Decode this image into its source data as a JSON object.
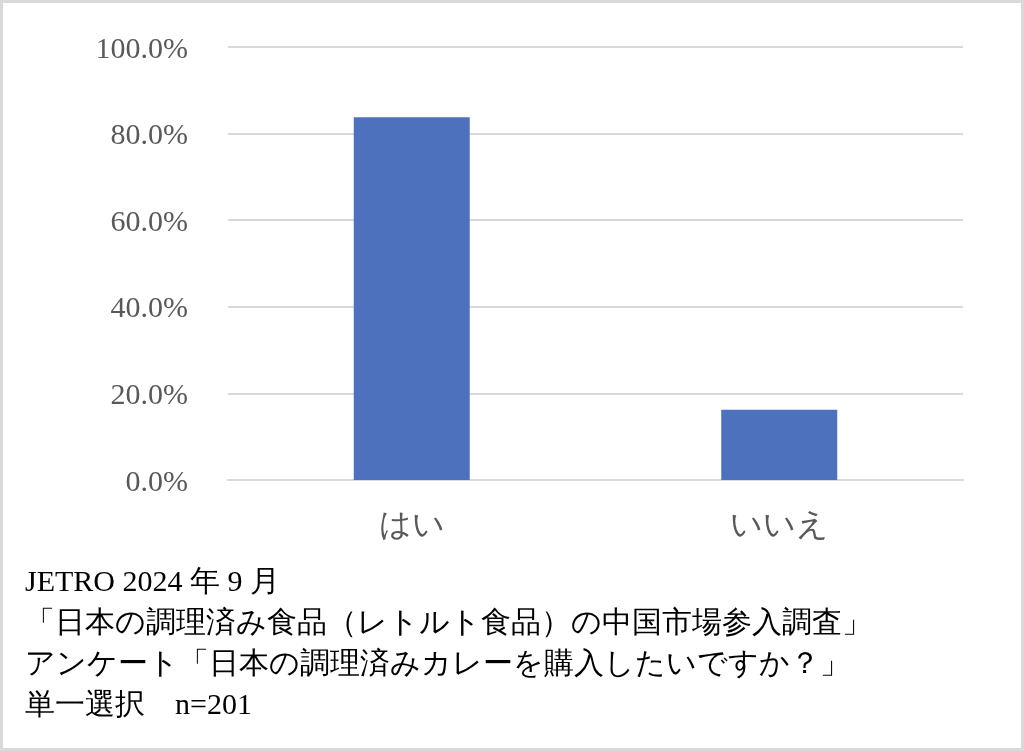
{
  "chart_data": {
    "type": "bar",
    "categories": [
      "はい",
      "いいえ"
    ],
    "values": [
      83.8,
      16.2
    ],
    "color": "#4e71be",
    "ylim": [
      0,
      100
    ],
    "yticks": [
      {
        "value": 0,
        "label": "0.0%"
      },
      {
        "value": 20,
        "label": "20.0%"
      },
      {
        "value": 40,
        "label": "40.0%"
      },
      {
        "value": 60,
        "label": "60.0%"
      },
      {
        "value": 80,
        "label": "80.0%"
      },
      {
        "value": 100,
        "label": "100.0%"
      }
    ],
    "grid": "y",
    "annotations": [
      "JETRO 2024 年 9 月",
      "「日本の調理済み食品（レトルト食品）の中国市場参入調査」",
      "アンケート「日本の調理済みカレーを購入したいですか？」",
      "単一選択　n=201"
    ]
  }
}
